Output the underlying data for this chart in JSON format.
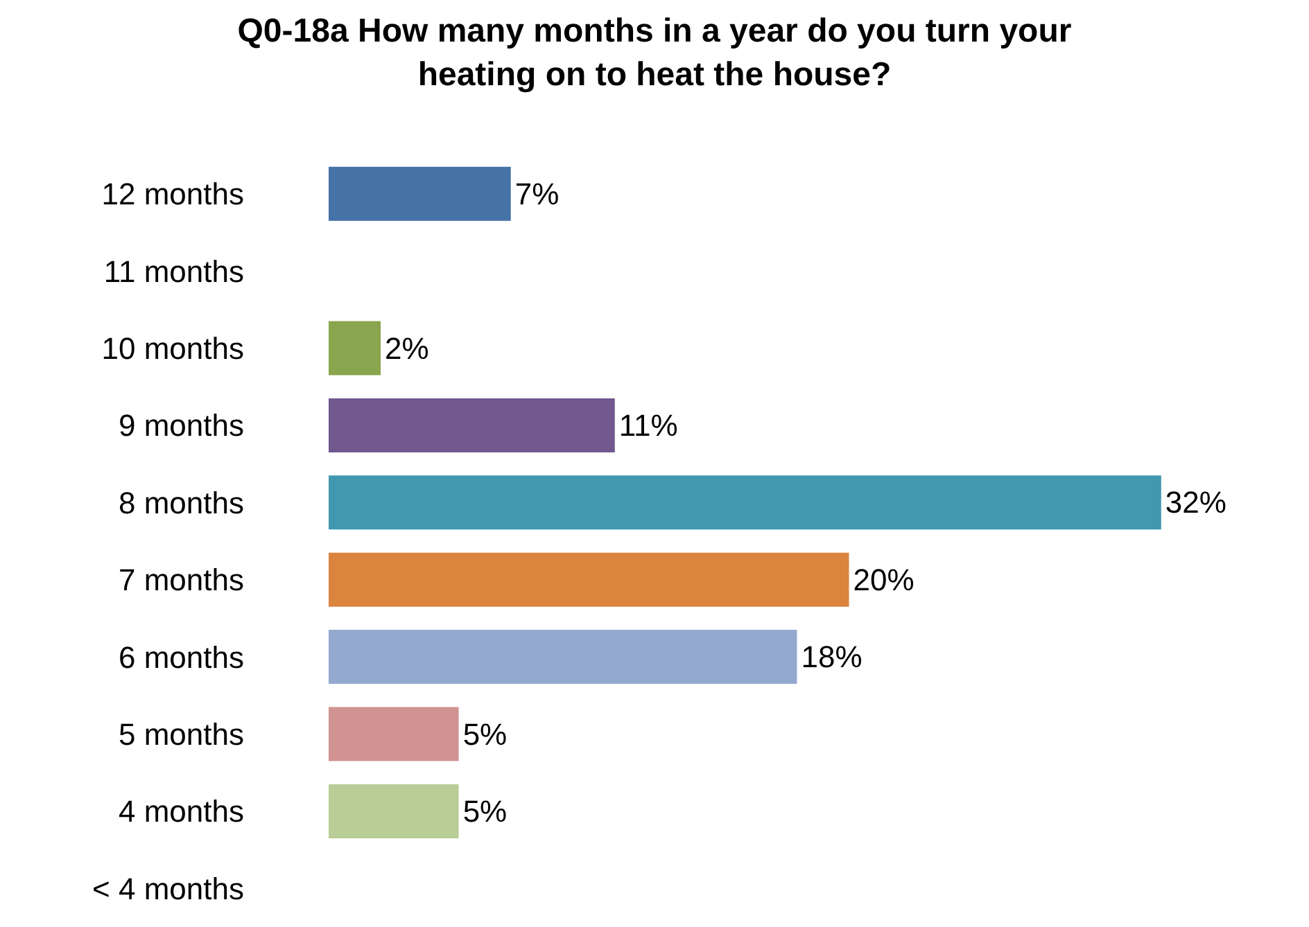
{
  "chart_data": {
    "type": "bar",
    "orientation": "horizontal",
    "title": "Q0-18a How many months in a year do you turn your heating on to heat the house?",
    "categories": [
      "12 months",
      "11 months",
      "10 months",
      "9 months",
      "8 months",
      "7 months",
      "6 months",
      "5 months",
      "4 months",
      "< 4 months"
    ],
    "values": [
      7,
      0,
      2,
      11,
      32,
      20,
      18,
      5,
      5,
      0
    ],
    "colors": [
      "#4572a7",
      "#aa4643",
      "#89a54e",
      "#71588f",
      "#4198af",
      "#db843d",
      "#93a9cf",
      "#d19392",
      "#b9cd96",
      "#a99bbd"
    ],
    "value_labels": [
      "7%",
      null,
      "2%",
      "11%",
      "32%",
      "20%",
      "18%",
      "5%",
      "5%",
      null
    ]
  }
}
